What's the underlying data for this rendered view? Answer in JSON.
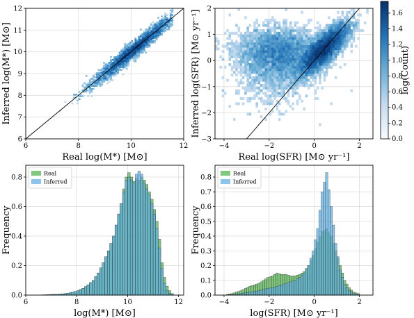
{
  "chart_data": [
    {
      "type": "heatmap",
      "panel": "top-left",
      "xlabel": "Real log(M*) [M⊙]",
      "ylabel": "Inferred log(M*) [M⊙]",
      "xlim": [
        6,
        12
      ],
      "ylim": [
        6,
        12
      ],
      "xticks": [
        "6",
        "8",
        "10",
        "12"
      ],
      "yticks": [
        "6",
        "7",
        "8",
        "9",
        "10",
        "11",
        "12"
      ],
      "one_to_one_line": true,
      "density": {
        "trend_slope": 1.0,
        "trend_intercept": 0.0,
        "x_range": [
          6.5,
          11.6
        ],
        "center": 10.1
      }
    },
    {
      "type": "heatmap",
      "panel": "top-right",
      "xlabel": "Real log(SFR) [M⊙ yr⁻¹]",
      "ylabel": "Inferred log(SFR) [M⊙ yr⁻¹]",
      "xlim": [
        -4.4,
        2.6
      ],
      "ylim": [
        -3,
        2
      ],
      "xticks": [
        "−4",
        "−2",
        "0",
        "2"
      ],
      "yticks": [
        "−3",
        "−2",
        "−1",
        "0",
        "1",
        "2"
      ],
      "one_to_one_line": true,
      "colorbar": {
        "label": "log(Count)",
        "range": [
          0,
          1.75
        ],
        "ticks": [
          "0.0",
          "0.2",
          "0.4",
          "0.6",
          "0.8",
          "1.0",
          "1.2",
          "1.4",
          "1.6"
        ]
      }
    },
    {
      "type": "bar",
      "panel": "bottom-left",
      "xlabel": "log(M*) [M⊙]",
      "ylabel": "Frequency",
      "xlim": [
        6,
        12.2
      ],
      "ylim": [
        0,
        0.88
      ],
      "xticks": [
        "6",
        "8",
        "10",
        "12"
      ],
      "yticks": [
        "0.0",
        "0.2",
        "0.4",
        "0.6",
        "0.8"
      ],
      "legend": "top-left",
      "bin_width": 0.1,
      "series": [
        {
          "name": "Real",
          "color": "#4daf4a",
          "bins": [
            [
              6.6,
              0.002
            ],
            [
              6.8,
              0.003
            ],
            [
              7.0,
              0.005
            ],
            [
              7.2,
              0.006
            ],
            [
              7.4,
              0.008
            ],
            [
              7.6,
              0.012
            ],
            [
              7.8,
              0.02
            ],
            [
              8.0,
              0.03
            ],
            [
              8.2,
              0.045
            ],
            [
              8.4,
              0.07
            ],
            [
              8.6,
              0.1
            ],
            [
              8.8,
              0.15
            ],
            [
              9.0,
              0.22
            ],
            [
              9.2,
              0.3
            ],
            [
              9.4,
              0.4
            ],
            [
              9.6,
              0.55
            ],
            [
              9.7,
              0.62
            ],
            [
              9.8,
              0.72
            ],
            [
              9.9,
              0.8
            ],
            [
              10.0,
              0.83
            ],
            [
              10.1,
              0.8
            ],
            [
              10.2,
              0.77
            ],
            [
              10.3,
              0.79
            ],
            [
              10.4,
              0.78
            ],
            [
              10.5,
              0.8
            ],
            [
              10.6,
              0.78
            ],
            [
              10.7,
              0.75
            ],
            [
              10.8,
              0.7
            ],
            [
              10.9,
              0.65
            ],
            [
              11.0,
              0.58
            ],
            [
              11.1,
              0.5
            ],
            [
              11.2,
              0.38
            ],
            [
              11.3,
              0.22
            ],
            [
              11.4,
              0.12
            ],
            [
              11.5,
              0.06
            ],
            [
              11.6,
              0.03
            ],
            [
              11.7,
              0.01
            ]
          ]
        },
        {
          "name": "Inferred",
          "color": "#5dade2",
          "bins": [
            [
              6.6,
              0.001
            ],
            [
              6.8,
              0.002
            ],
            [
              7.0,
              0.004
            ],
            [
              7.2,
              0.006
            ],
            [
              7.4,
              0.008
            ],
            [
              7.6,
              0.012
            ],
            [
              7.8,
              0.02
            ],
            [
              8.0,
              0.03
            ],
            [
              8.2,
              0.045
            ],
            [
              8.4,
              0.07
            ],
            [
              8.6,
              0.1
            ],
            [
              8.8,
              0.15
            ],
            [
              9.0,
              0.22
            ],
            [
              9.2,
              0.3
            ],
            [
              9.4,
              0.4
            ],
            [
              9.6,
              0.55
            ],
            [
              9.7,
              0.62
            ],
            [
              9.8,
              0.7
            ],
            [
              9.9,
              0.78
            ],
            [
              10.0,
              0.8
            ],
            [
              10.1,
              0.78
            ],
            [
              10.2,
              0.76
            ],
            [
              10.3,
              0.82
            ],
            [
              10.4,
              0.84
            ],
            [
              10.5,
              0.82
            ],
            [
              10.6,
              0.76
            ],
            [
              10.7,
              0.72
            ],
            [
              10.8,
              0.68
            ],
            [
              10.9,
              0.62
            ],
            [
              11.0,
              0.55
            ],
            [
              11.1,
              0.45
            ],
            [
              11.2,
              0.32
            ],
            [
              11.3,
              0.18
            ],
            [
              11.4,
              0.08
            ],
            [
              11.5,
              0.03
            ],
            [
              11.6,
              0.01
            ],
            [
              11.7,
              0.005
            ]
          ]
        }
      ]
    },
    {
      "type": "bar",
      "panel": "bottom-right",
      "xlabel": "log(SFR) [M⊙ yr⁻¹]",
      "ylabel": "Frequency",
      "xlim": [
        -4.4,
        2.6
      ],
      "ylim": [
        0,
        0.88
      ],
      "xticks": [
        "−4",
        "−2",
        "0",
        "2"
      ],
      "yticks": [
        "0.0",
        "0.1",
        "0.2",
        "0.3",
        "0.4",
        "0.5",
        "0.6",
        "0.7",
        "0.8"
      ],
      "legend": "top-left",
      "bin_width": 0.1,
      "series": [
        {
          "name": "Real",
          "color": "#4daf4a",
          "bins": [
            [
              -3.9,
              0.005
            ],
            [
              -3.7,
              0.01
            ],
            [
              -3.5,
              0.02
            ],
            [
              -3.3,
              0.03
            ],
            [
              -3.1,
              0.045
            ],
            [
              -2.9,
              0.06
            ],
            [
              -2.7,
              0.07
            ],
            [
              -2.5,
              0.08
            ],
            [
              -2.3,
              0.1
            ],
            [
              -2.1,
              0.12
            ],
            [
              -1.9,
              0.13
            ],
            [
              -1.7,
              0.15
            ],
            [
              -1.5,
              0.14
            ],
            [
              -1.3,
              0.14
            ],
            [
              -1.1,
              0.13
            ],
            [
              -0.9,
              0.13
            ],
            [
              -0.7,
              0.14
            ],
            [
              -0.5,
              0.16
            ],
            [
              -0.3,
              0.2
            ],
            [
              -0.1,
              0.27
            ],
            [
              0.1,
              0.36
            ],
            [
              0.3,
              0.43
            ],
            [
              0.5,
              0.45
            ],
            [
              0.7,
              0.4
            ],
            [
              0.9,
              0.3
            ],
            [
              1.1,
              0.2
            ],
            [
              1.3,
              0.1
            ],
            [
              1.5,
              0.05
            ],
            [
              1.7,
              0.02
            ],
            [
              1.9,
              0.01
            ]
          ]
        },
        {
          "name": "Inferred",
          "color": "#5dade2",
          "bins": [
            [
              -3.9,
              0.002
            ],
            [
              -3.7,
              0.004
            ],
            [
              -3.5,
              0.006
            ],
            [
              -3.3,
              0.01
            ],
            [
              -3.1,
              0.015
            ],
            [
              -2.9,
              0.02
            ],
            [
              -2.7,
              0.025
            ],
            [
              -2.5,
              0.03
            ],
            [
              -2.3,
              0.04
            ],
            [
              -2.1,
              0.045
            ],
            [
              -1.9,
              0.05
            ],
            [
              -1.7,
              0.06
            ],
            [
              -1.5,
              0.07
            ],
            [
              -1.3,
              0.08
            ],
            [
              -1.1,
              0.09
            ],
            [
              -0.9,
              0.1
            ],
            [
              -0.7,
              0.12
            ],
            [
              -0.5,
              0.15
            ],
            [
              -0.3,
              0.2
            ],
            [
              -0.1,
              0.3
            ],
            [
              0.1,
              0.45
            ],
            [
              0.3,
              0.7
            ],
            [
              0.5,
              0.83
            ],
            [
              0.7,
              0.6
            ],
            [
              0.9,
              0.35
            ],
            [
              1.1,
              0.17
            ],
            [
              1.3,
              0.07
            ],
            [
              1.5,
              0.03
            ],
            [
              1.7,
              0.01
            ],
            [
              1.9,
              0.005
            ]
          ]
        }
      ]
    }
  ]
}
